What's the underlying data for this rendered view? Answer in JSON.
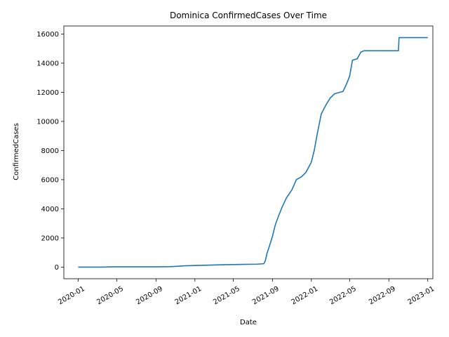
{
  "chart_data": {
    "type": "line",
    "title": "Dominica  ConfirmedCases Over Time",
    "xlabel": "Date",
    "ylabel": "ConfirmedCases",
    "x_axis_type": "date",
    "xlim": [
      "2019-11-17",
      "2023-01-17"
    ],
    "ylim": [
      -800,
      16550
    ],
    "x_ticks": [
      "2020-01",
      "2020-05",
      "2020-09",
      "2021-01",
      "2021-05",
      "2021-09",
      "2022-01",
      "2022-05",
      "2022-09",
      "2023-01"
    ],
    "y_ticks": [
      0,
      2000,
      4000,
      6000,
      8000,
      10000,
      12000,
      14000,
      16000
    ],
    "grid": false,
    "line_color": "#1f77b4",
    "series": [
      {
        "points": [
          [
            "2020-01-01",
            0
          ],
          [
            "2020-03-20",
            0
          ],
          [
            "2020-04-15",
            16
          ],
          [
            "2020-07-01",
            18
          ],
          [
            "2020-09-01",
            18
          ],
          [
            "2020-10-15",
            30
          ],
          [
            "2020-11-10",
            60
          ],
          [
            "2020-12-01",
            88
          ],
          [
            "2021-01-01",
            105
          ],
          [
            "2021-03-01",
            145
          ],
          [
            "2021-04-01",
            160
          ],
          [
            "2021-06-01",
            185
          ],
          [
            "2021-07-15",
            200
          ],
          [
            "2021-08-05",
            230
          ],
          [
            "2021-08-10",
            450
          ],
          [
            "2021-08-15",
            950
          ],
          [
            "2021-08-22",
            1400
          ],
          [
            "2021-09-01",
            2100
          ],
          [
            "2021-09-10",
            2900
          ],
          [
            "2021-09-20",
            3500
          ],
          [
            "2021-10-01",
            4100
          ],
          [
            "2021-10-15",
            4750
          ],
          [
            "2021-11-01",
            5300
          ],
          [
            "2021-11-15",
            6000
          ],
          [
            "2021-12-01",
            6200
          ],
          [
            "2021-12-15",
            6500
          ],
          [
            "2022-01-01",
            7200
          ],
          [
            "2022-01-10",
            8000
          ],
          [
            "2022-01-20",
            9200
          ],
          [
            "2022-02-01",
            10500
          ],
          [
            "2022-02-15",
            11100
          ],
          [
            "2022-03-01",
            11600
          ],
          [
            "2022-03-15",
            11900
          ],
          [
            "2022-04-01",
            12000
          ],
          [
            "2022-04-10",
            12050
          ],
          [
            "2022-04-20",
            12500
          ],
          [
            "2022-05-01",
            13100
          ],
          [
            "2022-05-10",
            14200
          ],
          [
            "2022-05-25",
            14300
          ],
          [
            "2022-06-05",
            14750
          ],
          [
            "2022-06-15",
            14850
          ],
          [
            "2022-07-01",
            14850
          ],
          [
            "2022-09-01",
            14850
          ],
          [
            "2022-10-01",
            14850
          ],
          [
            "2022-10-03",
            15750
          ],
          [
            "2023-01-01",
            15750
          ]
        ]
      }
    ]
  }
}
